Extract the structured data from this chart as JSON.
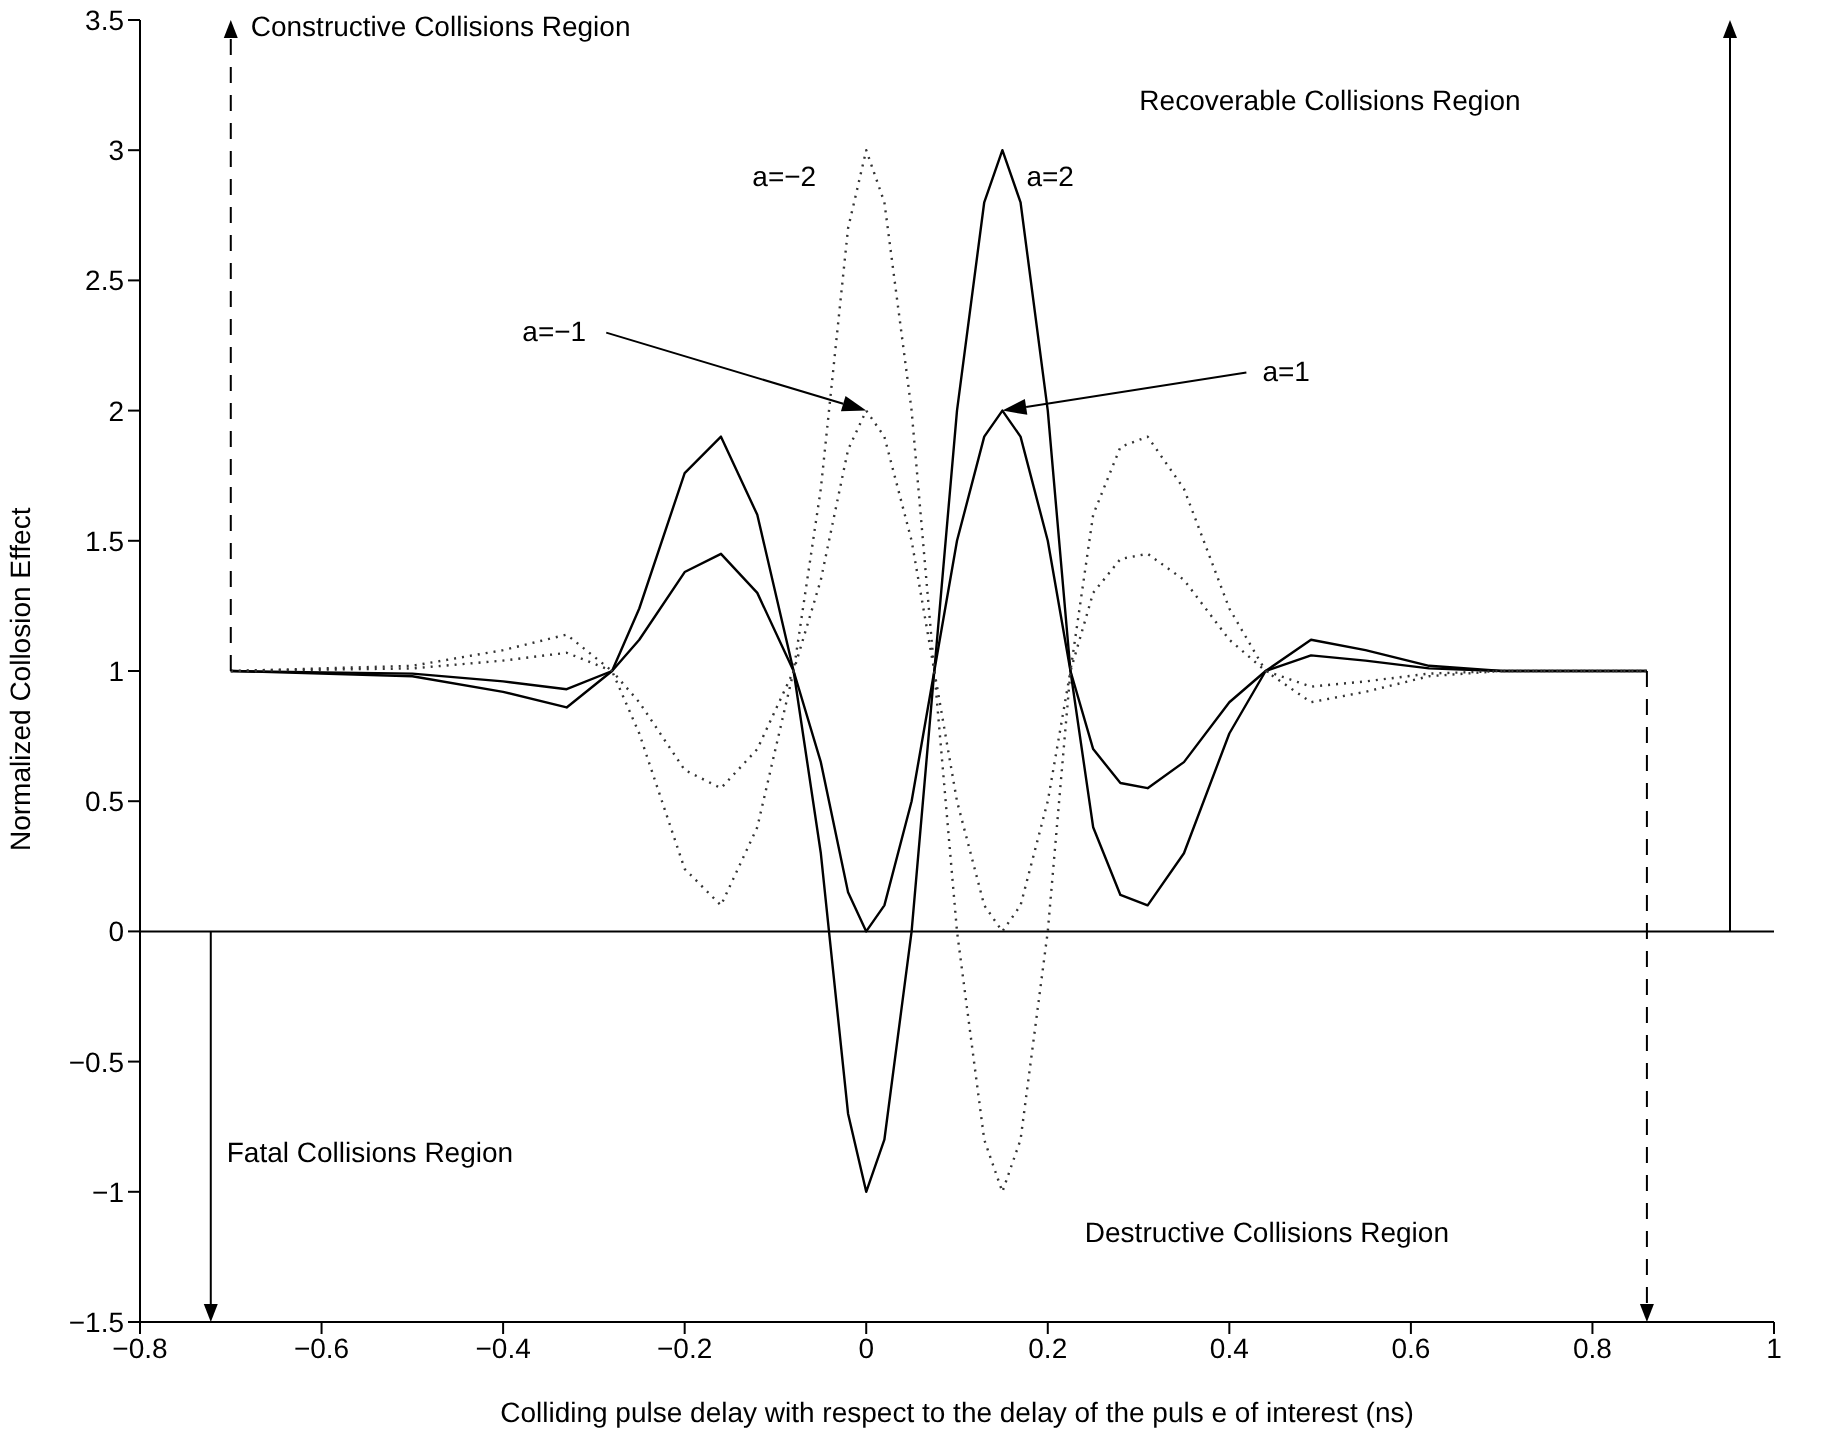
{
  "chart_data": {
    "type": "line",
    "xlabel": "Colliding pulse delay with respect to the delay of the puls e of interest (ns)",
    "ylabel": "Normalized Collosion Effect",
    "x": [
      -0.7,
      -0.5,
      -0.4,
      -0.33,
      -0.28,
      -0.25,
      -0.2,
      -0.16,
      -0.12,
      -0.08,
      -0.05,
      -0.02,
      0,
      0.02,
      0.05,
      0.075,
      0.1,
      0.13,
      0.15,
      0.17,
      0.2,
      0.225,
      0.25,
      0.28,
      0.31,
      0.35,
      0.4,
      0.44,
      0.49,
      0.55,
      0.62,
      0.7,
      0.86
    ],
    "series": [
      {
        "name": "a=2",
        "color": "#000000",
        "line_style": "solid",
        "values": [
          1,
          0.98,
          0.92,
          0.86,
          1,
          1.24,
          1.76,
          1.9,
          1.6,
          1,
          0.3,
          -0.7,
          -1,
          -0.8,
          0,
          1,
          2,
          2.8,
          3,
          2.8,
          2,
          1,
          0.4,
          0.14,
          0.1,
          0.3,
          0.76,
          1,
          1.12,
          1.08,
          1.02,
          1,
          1
        ]
      },
      {
        "name": "a=1",
        "color": "#000000",
        "line_style": "solid",
        "values": [
          1,
          0.99,
          0.96,
          0.93,
          1,
          1.12,
          1.38,
          1.45,
          1.3,
          1,
          0.65,
          0.15,
          0,
          0.1,
          0.5,
          1,
          1.5,
          1.9,
          2,
          1.9,
          1.5,
          1,
          0.7,
          0.57,
          0.55,
          0.65,
          0.88,
          1,
          1.06,
          1.04,
          1.01,
          1,
          1
        ]
      },
      {
        "name": "a=−1",
        "color": "#333333",
        "line_style": "dotted",
        "values": [
          1,
          1.01,
          1.04,
          1.07,
          1,
          0.88,
          0.62,
          0.55,
          0.7,
          1,
          1.35,
          1.85,
          2,
          1.9,
          1.5,
          1,
          0.5,
          0.1,
          0,
          0.1,
          0.5,
          1,
          1.3,
          1.43,
          1.45,
          1.35,
          1.12,
          1,
          0.94,
          0.96,
          0.99,
          1,
          1
        ]
      },
      {
        "name": "a=−2",
        "color": "#333333",
        "line_style": "dotted",
        "values": [
          1,
          1.02,
          1.08,
          1.14,
          1,
          0.76,
          0.24,
          0.1,
          0.4,
          1,
          1.7,
          2.7,
          3,
          2.8,
          2,
          1,
          0,
          -0.8,
          -1,
          -0.8,
          0,
          1,
          1.6,
          1.86,
          1.9,
          1.7,
          1.24,
          1,
          0.88,
          0.92,
          0.98,
          1,
          1
        ]
      }
    ],
    "xlim": [
      -0.8,
      1
    ],
    "xticks": [
      {
        "value": -0.8,
        "label": "−0.8"
      },
      {
        "value": -0.6,
        "label": "−0.6"
      },
      {
        "value": -0.4,
        "label": "−0.4"
      },
      {
        "value": -0.2,
        "label": "−0.2"
      },
      0,
      0.2,
      0.4,
      0.6,
      0.8,
      1
    ],
    "ylim": [
      -1.5,
      3.5
    ],
    "yticks": [
      {
        "value": -1.5,
        "label": "−1.5"
      },
      {
        "value": -1,
        "label": "−1"
      },
      {
        "value": -0.5,
        "label": "−0.5"
      },
      0,
      0.5,
      1,
      1.5,
      2,
      2.5,
      3,
      3.5
    ],
    "ref_lines": [
      {
        "axis": "y",
        "value": 0,
        "color": "#000000",
        "line_style": "solid"
      }
    ],
    "annotations": [
      {
        "text": "Constructive Collisions Region",
        "x": -0.7,
        "y": 1
      },
      "Recoverable Collisions Region",
      "Fatal Collisions Region",
      "Destructive Collisions Region"
    ],
    "grid": false,
    "legend": false,
    "marker": "none"
  }
}
